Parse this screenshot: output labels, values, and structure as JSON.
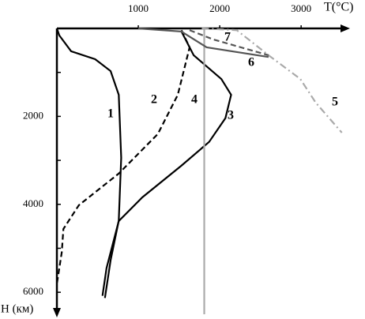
{
  "chart_data": {
    "type": "line",
    "xlabel": "T(°C)",
    "ylabel": "H (км)",
    "xlim": [
      0,
      3600
    ],
    "ylim": [
      0,
      6500
    ],
    "xticks": [
      1000,
      2000,
      3000
    ],
    "yticks": [
      2000,
      4000,
      6000
    ],
    "yminor_ticks": [
      1000,
      3000,
      5000
    ],
    "series": [
      {
        "name": "1",
        "color": "#000000",
        "style": "solid",
        "x": [
          0,
          30,
          175,
          470,
          660,
          760,
          790,
          760,
          660,
          590
        ],
        "values": [
          0,
          160,
          520,
          700,
          970,
          1510,
          2940,
          4370,
          5270,
          6130
        ]
      },
      {
        "name": "2",
        "color": "#000000",
        "style": "dashed",
        "x": [
          1530,
          1630,
          1485,
          1240,
          760,
          270,
          80,
          60,
          0
        ],
        "values": [
          40,
          430,
          1510,
          2400,
          3300,
          4020,
          4560,
          5090,
          5810
        ]
      },
      {
        "name": "3",
        "color": "#000000",
        "style": "solid",
        "x": [
          1530,
          1680,
          2020,
          2140,
          2070,
          1870,
          1530,
          1050,
          760,
          610,
          560
        ],
        "values": [
          70,
          610,
          1150,
          1510,
          2040,
          2580,
          3120,
          3840,
          4380,
          5450,
          6080
        ]
      },
      {
        "name": "4",
        "color": "#aaaaaa",
        "style": "solid",
        "x": [
          1810,
          1810
        ],
        "values": [
          0,
          6500
        ]
      },
      {
        "name": "5",
        "color": "#aaaaaa",
        "style": "dashdot",
        "x": [
          1780,
          2210,
          2600,
          2990,
          3180,
          3500
        ],
        "values": [
          0,
          40,
          610,
          1150,
          1690,
          2370
        ]
      },
      {
        "name": "6",
        "color": "#555555",
        "style": "solid",
        "x": [
          1000,
          1530,
          1840,
          2600
        ],
        "values": [
          0,
          70,
          430,
          650
        ]
      },
      {
        "name": "7",
        "color": "#555555",
        "style": "dashed",
        "x": [
          1630,
          1920,
          2600
        ],
        "values": [
          40,
          250,
          610
        ]
      }
    ]
  }
}
